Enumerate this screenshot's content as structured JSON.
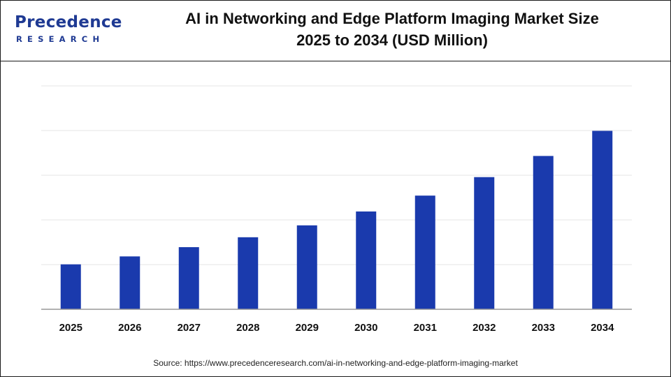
{
  "header": {
    "logo_word": "Precedence",
    "logo_sub": "RESEARCH",
    "title_line1": "AI in Networking and Edge Platform Imaging Market Size",
    "title_line2": "2025 to 2034 (USD Million)"
  },
  "chart_data": {
    "type": "bar",
    "title": "AI in Networking and Edge Platform Imaging Market Size 2025 to 2034 (USD Million)",
    "xlabel": "",
    "ylabel": "",
    "categories": [
      "2025",
      "2026",
      "2027",
      "2028",
      "2029",
      "2030",
      "2031",
      "2032",
      "2033",
      "2034"
    ],
    "values": [
      68,
      80,
      94,
      109,
      127,
      148,
      172,
      200,
      232,
      270
    ],
    "ylim": [
      0,
      337
    ],
    "grid": true,
    "y_ticks_shown": false,
    "bar_color": "#1a3aad",
    "grid_color": "#e6e6e6"
  },
  "footer": {
    "source": "Source: https://www.precedenceresearch.com/ai-in-networking-and-edge-platform-imaging-market"
  }
}
